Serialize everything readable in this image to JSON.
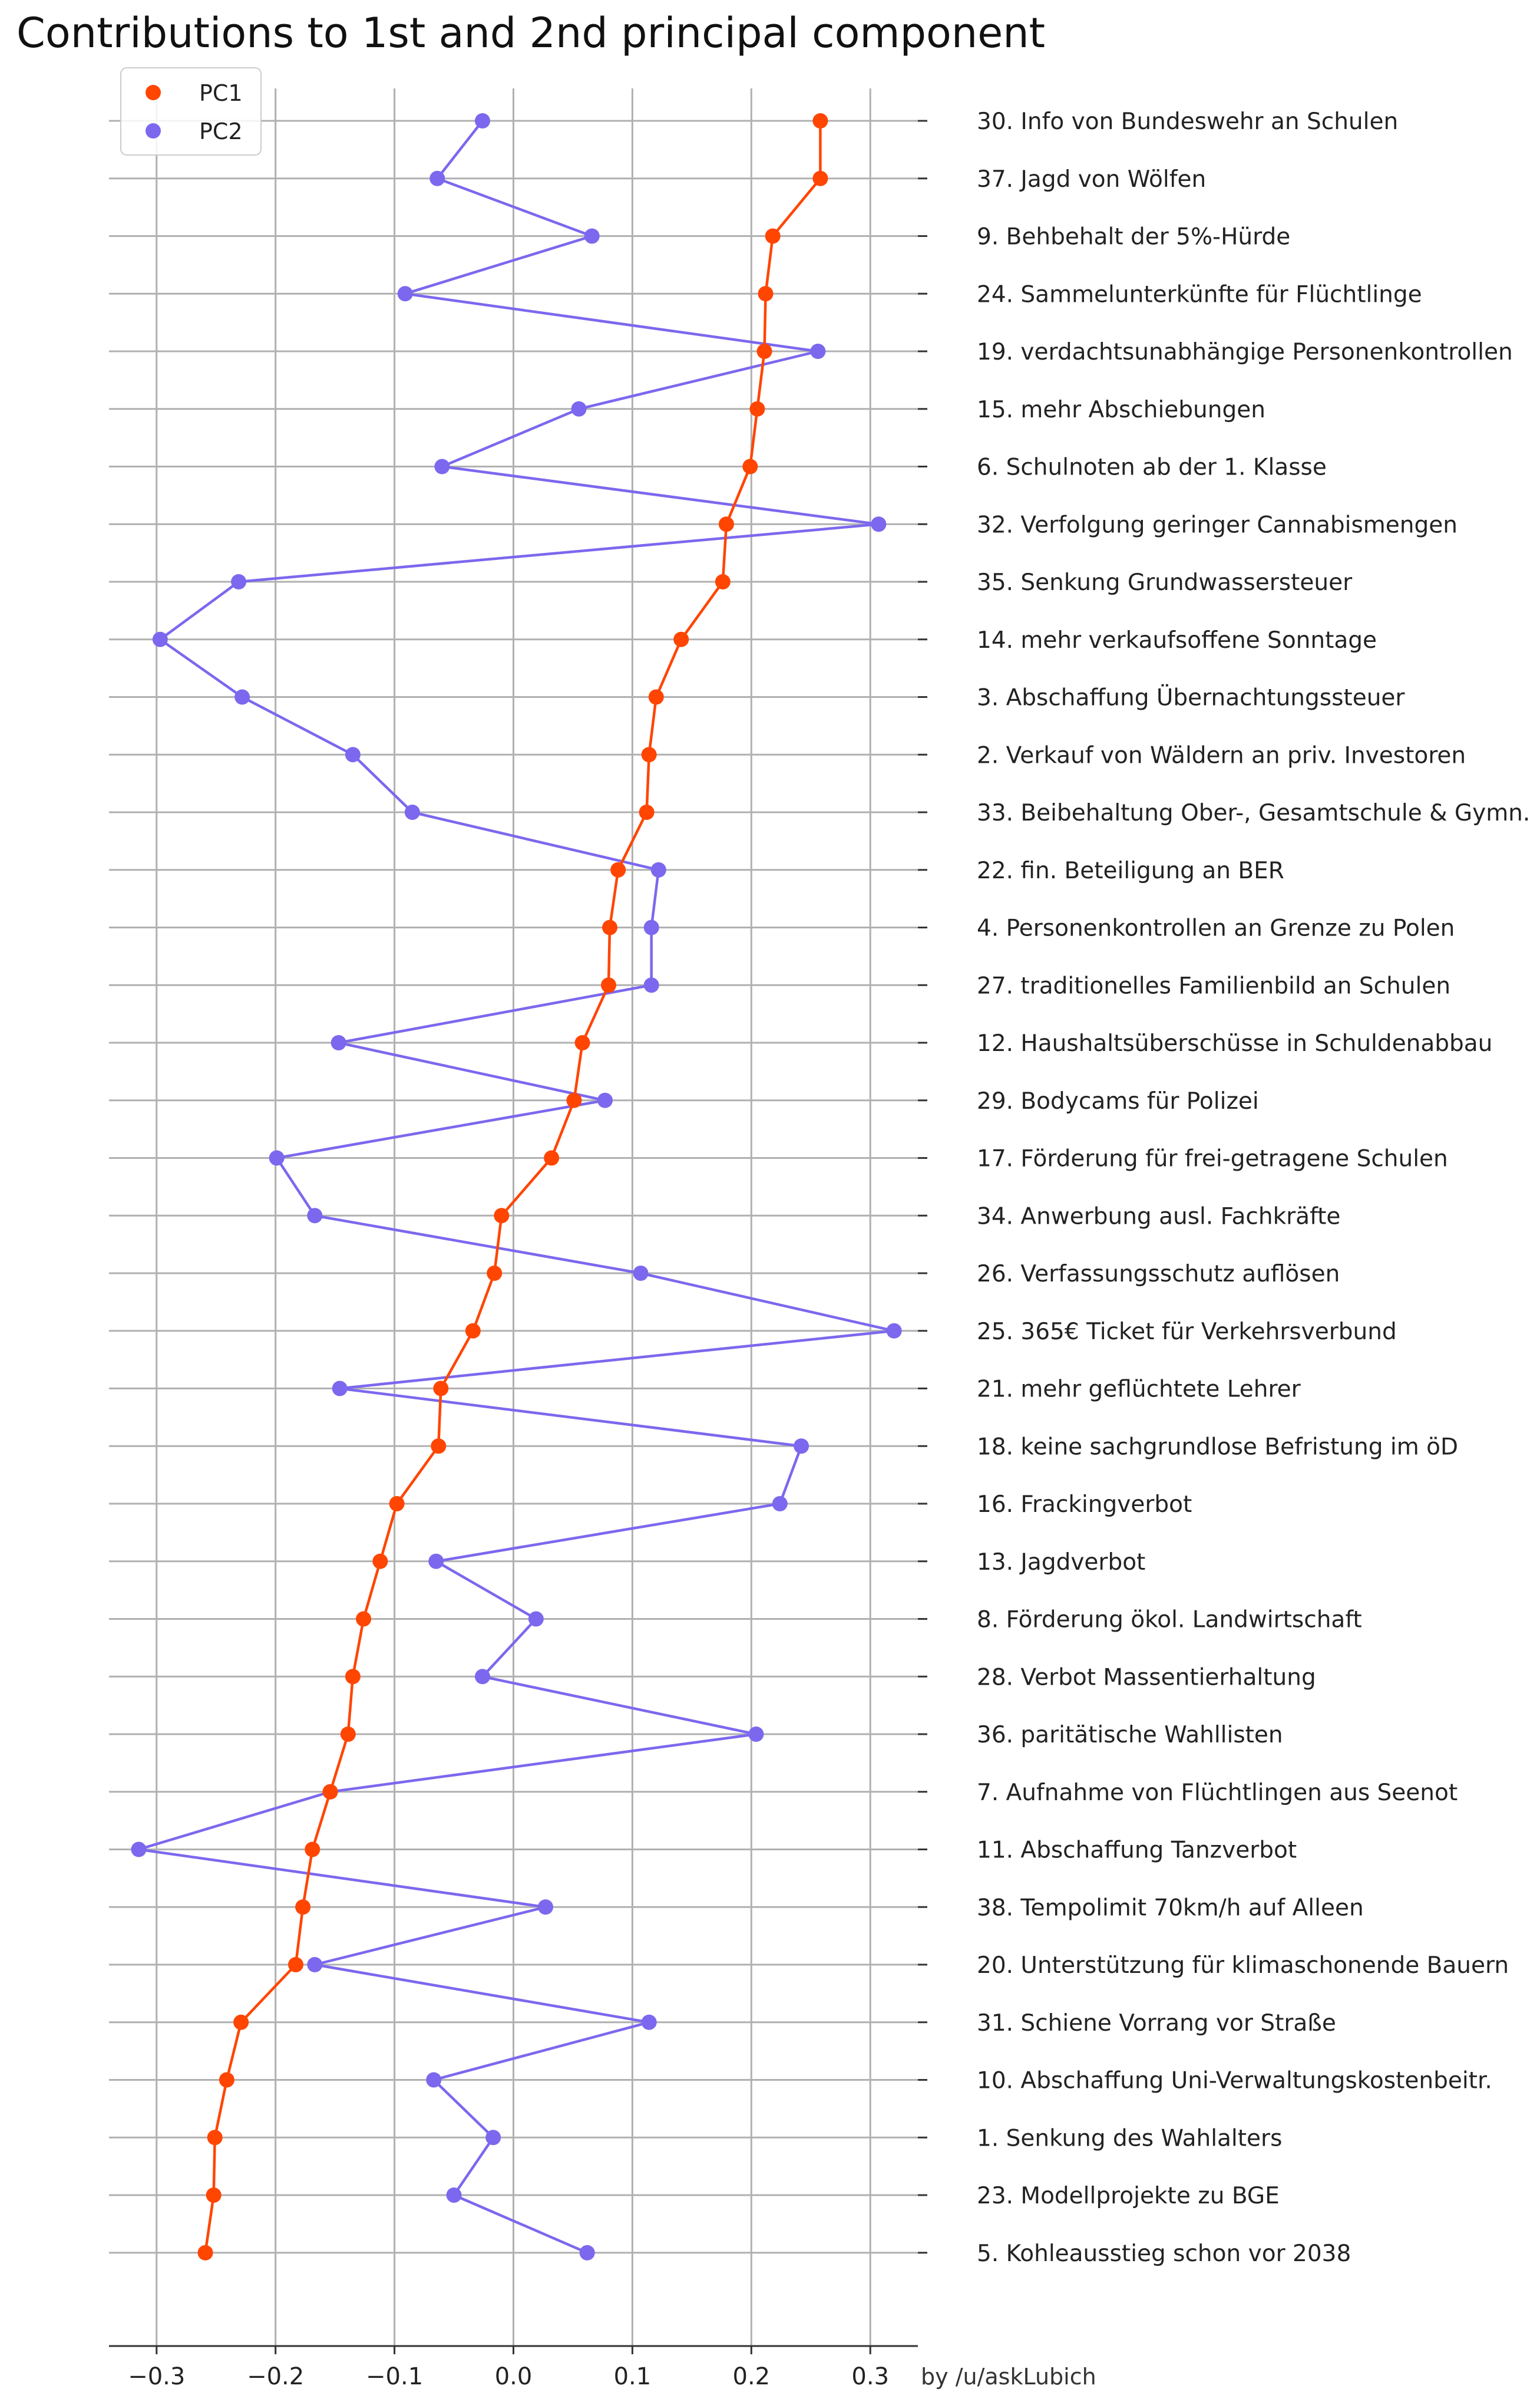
{
  "chart_data": {
    "type": "line",
    "title": "Contributions to 1st and 2nd principal component",
    "credit": "by /u/askLubich",
    "xlim": [
      -0.34,
      0.34
    ],
    "x_ticks": [
      -0.3,
      -0.2,
      -0.1,
      0.0,
      0.1,
      0.2,
      0.3
    ],
    "x_tick_labels": [
      "−0.3",
      "−0.2",
      "−0.1",
      "0.0",
      "0.1",
      "0.2",
      "0.3"
    ],
    "grid": true,
    "legend_position": "top-left",
    "categories": [
      "30. Info von Bundeswehr an Schulen",
      "37. Jagd von Wölfen",
      "9. Behbehalt der 5%-Hürde",
      "24. Sammelunterkünfte für Flüchtlinge",
      "19. verdachtsunabhängige Personenkontrollen",
      "15. mehr Abschiebungen",
      "6. Schulnoten ab der 1. Klasse",
      "32. Verfolgung geringer Cannabismengen",
      "35. Senkung Grundwassersteuer",
      "14. mehr verkaufsoffene Sonntage",
      "3. Abschaffung Übernachtungssteuer",
      "2. Verkauf von Wäldern an priv. Investoren",
      "33. Beibehaltung Ober-, Gesamtschule & Gymn.",
      "22. fin. Beteiligung an BER",
      "4. Personenkontrollen an Grenze zu Polen",
      "27. traditionelles Familienbild an Schulen",
      "12. Haushaltsüberschüsse in Schuldenabbau",
      "29. Bodycams für Polizei",
      "17. Förderung für frei-getragene Schulen",
      "34. Anwerbung ausl. Fachkräfte",
      "26. Verfassungsschutz auflösen",
      "25. 365€ Ticket für Verkehrsverbund",
      "21. mehr geflüchtete Lehrer",
      "18. keine sachgrundlose Befristung im öD",
      "16. Frackingverbot",
      "13. Jagdverbot",
      "8. Förderung ökol. Landwirtschaft",
      "28. Verbot Massentierhaltung",
      "36. paritätische Wahllisten",
      "7. Aufnahme von Flüchtlingen aus Seenot",
      "11. Abschaffung Tanzverbot",
      "38. Tempolimit 70km/h auf Alleen",
      "20. Unterstützung für klimaschonende Bauern",
      "31. Schiene Vorrang vor Straße",
      "10. Abschaffung Uni-Verwaltungskostenbeitr.",
      "1. Senkung des Wahlalters",
      "23. Modellprojekte zu BGE",
      "5. Kohleausstieg schon vor 2038"
    ],
    "series": [
      {
        "name": "PC1",
        "color": "#ff4500",
        "values": [
          0.258,
          0.258,
          0.218,
          0.212,
          0.211,
          0.205,
          0.199,
          0.179,
          0.176,
          0.141,
          0.12,
          0.114,
          0.112,
          0.088,
          0.081,
          0.08,
          0.058,
          0.051,
          0.032,
          -0.01,
          -0.016,
          -0.034,
          -0.061,
          -0.063,
          -0.098,
          -0.112,
          -0.126,
          -0.135,
          -0.139,
          -0.154,
          -0.169,
          -0.177,
          -0.183,
          -0.229,
          -0.241,
          -0.251,
          -0.252,
          -0.259
        ]
      },
      {
        "name": "PC2",
        "color": "#7b68ee",
        "values": [
          -0.026,
          -0.064,
          0.066,
          -0.091,
          0.256,
          0.055,
          -0.06,
          0.307,
          -0.231,
          -0.297,
          -0.228,
          -0.135,
          -0.085,
          0.122,
          0.116,
          0.116,
          -0.147,
          0.077,
          -0.199,
          -0.167,
          0.107,
          0.32,
          -0.146,
          0.242,
          0.224,
          -0.065,
          0.019,
          -0.026,
          0.204,
          -0.154,
          -0.315,
          0.027,
          -0.167,
          0.114,
          -0.067,
          -0.017,
          -0.05,
          0.062
        ]
      }
    ]
  }
}
